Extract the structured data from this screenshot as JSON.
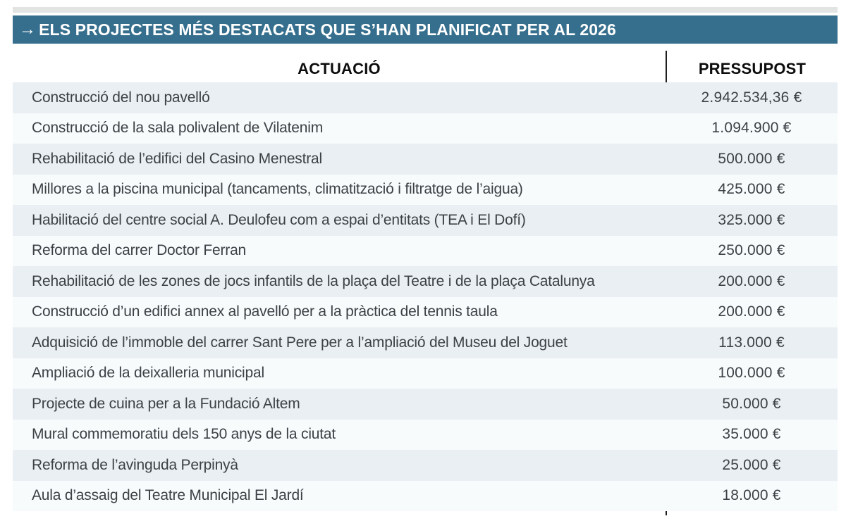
{
  "header": {
    "arrow": "→",
    "title": "ELS PROJECTES MÉS DESTACATS QUE S’HAN PLANIFICAT PER AL 2026"
  },
  "table": {
    "columns": [
      "ACTUACIÓ",
      "PRESSUPOST"
    ],
    "rows": [
      {
        "actuacio": "Construcció del nou pavelló",
        "pressupost": "2.942.534,36 €"
      },
      {
        "actuacio": "Construcció de la sala polivalent de Vilatenim",
        "pressupost": "1.094.900 €"
      },
      {
        "actuacio": "Rehabilitació de l’edifici del Casino Menestral",
        "pressupost": "500.000 €"
      },
      {
        "actuacio": "Millores a la piscina municipal (tancaments, climatització i filtratge de l’aigua)",
        "pressupost": "425.000 €"
      },
      {
        "actuacio": "Habilitació del centre social A. Deulofeu com a espai d’entitats (TEA i El Dofí)",
        "pressupost": "325.000 €"
      },
      {
        "actuacio": "Reforma del carrer Doctor Ferran",
        "pressupost": "250.000 €"
      },
      {
        "actuacio": "Rehabilitació de les zones de jocs infantils de la plaça del Teatre i de la plaça Catalunya",
        "pressupost": "200.000 €"
      },
      {
        "actuacio": "Construcció d’un edifici annex al pavelló per a la pràctica del tennis taula",
        "pressupost": "200.000 €"
      },
      {
        "actuacio": "Adquisició de l’immoble del carrer Sant Pere per a l’ampliació del Museu del Joguet",
        "pressupost": "113.000 €"
      },
      {
        "actuacio": "Ampliació de la deixalleria municipal",
        "pressupost": "100.000 €"
      },
      {
        "actuacio": "Projecte de cuina per a la Fundació Altem",
        "pressupost": "50.000 €"
      },
      {
        "actuacio": "Mural commemoratiu dels 150 anys de la ciutat",
        "pressupost": "35.000 €"
      },
      {
        "actuacio": "Reforma de l’avinguda Perpinyà",
        "pressupost": "25.000 €"
      },
      {
        "actuacio": "Aula d’assaig del Teatre Municipal El Jardí",
        "pressupost": "18.000 €"
      }
    ]
  },
  "colors": {
    "accent_teal": "#366f8d",
    "row_alt": "#e9eff2",
    "row_base": "#f8fbfc",
    "divider": "#1f1f1f",
    "body_text": "#3c4145",
    "header_text": "#0d0d0d",
    "top_strip": "#e2e4e4"
  },
  "chart_data": {
    "type": "table",
    "title": "ELS PROJECTES MÉS DESTACATS QUE S’HAN PLANIFICAT PER AL 2026",
    "columns": [
      "ACTUACIÓ",
      "PRESSUPOST"
    ],
    "rows": [
      [
        "Construcció del nou pavelló",
        "2.942.534,36 €"
      ],
      [
        "Construcció de la sala polivalent de Vilatenim",
        "1.094.900 €"
      ],
      [
        "Rehabilitació de l’edifici del Casino Menestral",
        "500.000 €"
      ],
      [
        "Millores a la piscina municipal (tancaments, climatització i filtratge de l’aigua)",
        "425.000 €"
      ],
      [
        "Habilitació del centre social A. Deulofeu com a espai d’entitats (TEA i El Dofí)",
        "325.000 €"
      ],
      [
        "Reforma del carrer Doctor Ferran",
        "250.000 €"
      ],
      [
        "Rehabilitació de les zones de jocs infantils de la plaça del Teatre i de la plaça Catalunya",
        "200.000 €"
      ],
      [
        "Construcció d’un edifici annex al pavelló per a la pràctica del tennis taula",
        "200.000 €"
      ],
      [
        "Adquisició de l’immoble del carrer Sant Pere per a l’ampliació del Museu del Joguet",
        "113.000 €"
      ],
      [
        "Ampliació de la deixalleria municipal",
        "100.000 €"
      ],
      [
        "Projecte de cuina per a la Fundació Altem",
        "50.000 €"
      ],
      [
        "Mural commemoratiu dels 150 anys de la ciutat",
        "35.000 €"
      ],
      [
        "Reforma de l’avinguda Perpinyà",
        "25.000 €"
      ],
      [
        "Aula d’assaig del Teatre Municipal El Jardí",
        "18.000 €"
      ]
    ],
    "values_eur": [
      2942534.36,
      1094900,
      500000,
      425000,
      325000,
      250000,
      200000,
      200000,
      113000,
      100000,
      50000,
      35000,
      25000,
      18000
    ]
  }
}
